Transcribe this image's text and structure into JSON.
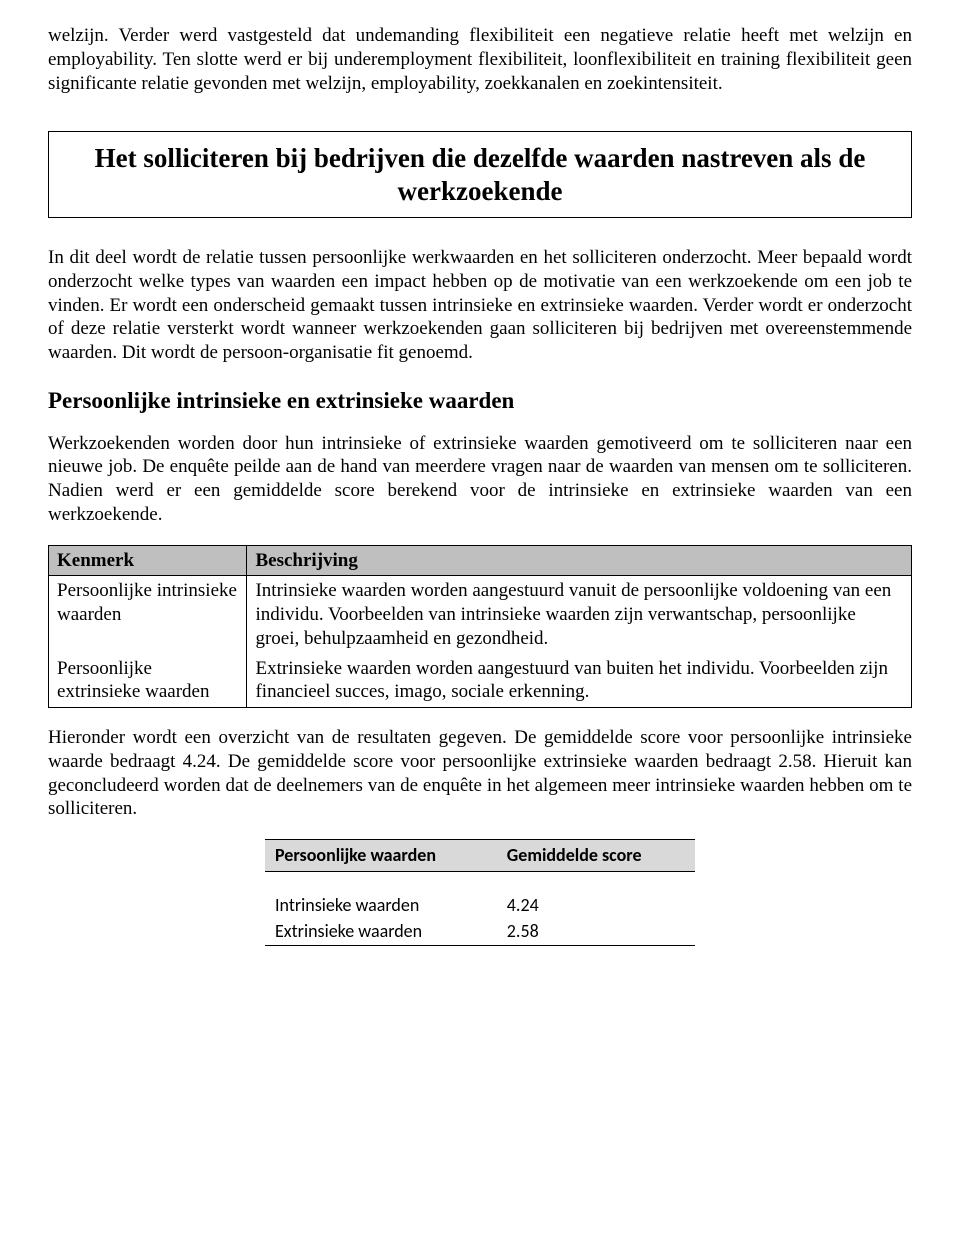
{
  "intro": {
    "p1": "welzijn. Verder werd vastgesteld dat undemanding flexibiliteit een negatieve relatie heeft met welzijn en employability. Ten slotte werd er bij underemployment flexibiliteit, loonflexibiliteit en training flexibiliteit geen significante relatie gevonden met welzijn, employability, zoekkanalen en zoekintensiteit."
  },
  "boxed_heading": "Het solliciteren bij bedrijven die dezelfde waarden nastreven als de werkzoekende",
  "section": {
    "p1": "In dit deel wordt de relatie tussen persoonlijke werkwaarden en het solliciteren onderzocht. Meer bepaald wordt onderzocht welke types van waarden een impact hebben op de motivatie van een werkzoekende om een job te vinden. Er wordt een onderscheid gemaakt tussen intrinsieke en extrinsieke waarden. Verder wordt er onderzocht of deze relatie versterkt wordt wanneer werkzoekenden gaan solliciteren bij bedrijven met overeenstemmende waarden. Dit wordt de persoon-organisatie fit genoemd.",
    "h3": "Persoonlijke intrinsieke en extrinsieke waarden",
    "p2": "Werkzoekenden worden door hun intrinsieke of extrinsieke waarden gemotiveerd om te solliciteren naar een nieuwe job. De enquête peilde aan de hand van meerdere vragen naar de waarden van mensen om te solliciteren. Nadien werd er een gemiddelde score berekend voor de intrinsieke en extrinsieke waarden van een werkzoekende."
  },
  "desc_table": {
    "headers": [
      "Kenmerk",
      "Beschrijving"
    ],
    "rows": [
      {
        "kenmerk": "Persoonlijke intrinsieke waarden",
        "beschrijving": "Intrinsieke waarden worden aangestuurd vanuit de persoonlijke voldoening van een individu. Voorbeelden van intrinsieke waarden zijn verwantschap, persoonlijke groei, behulpzaamheid en gezondheid."
      },
      {
        "kenmerk": "Persoonlijke extrinsieke waarden",
        "beschrijving": "Extrinsieke waarden worden aangestuurd van buiten het individu. Voorbeelden zijn financieel succes, imago, sociale erkenning."
      }
    ]
  },
  "p_after_table": "Hieronder wordt een overzicht van de resultaten gegeven. De gemiddelde score voor persoonlijke intrinsieke waarde bedraagt 4.24. De gemiddelde score voor persoonlijke extrinsieke waarden bedraagt 2.58. Hieruit kan geconcludeerd worden dat de deelnemers van de enquête in het algemeen meer intrinsieke waarden hebben om te solliciteren.",
  "score_table": {
    "headers": [
      "Persoonlijke waarden",
      "Gemiddelde score"
    ],
    "rows": [
      {
        "label": "Intrinsieke waarden",
        "value": "4.24"
      },
      {
        "label": "Extrinsieke waarden",
        "value": "2.58"
      }
    ]
  }
}
